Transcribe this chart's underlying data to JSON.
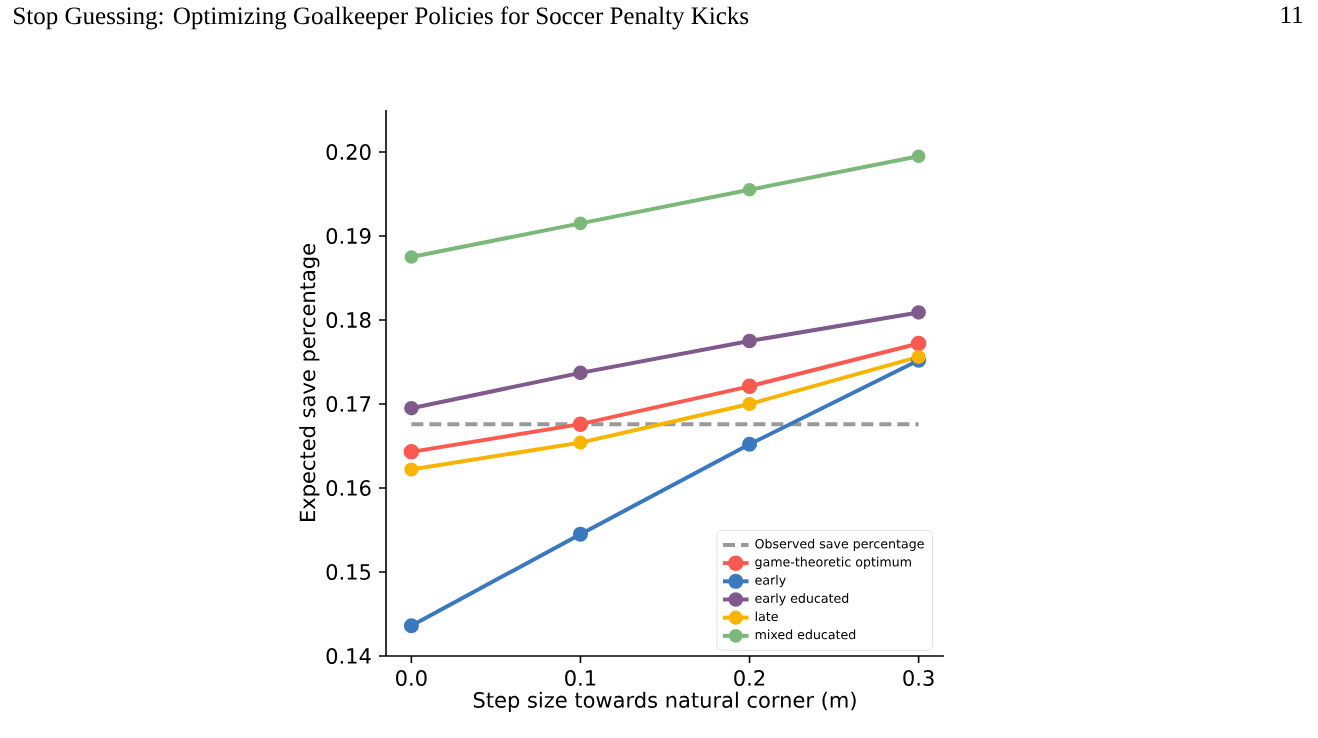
{
  "chart_data": {
    "type": "line",
    "title": "Stop Guessing: Optimizing Goalkeeper Policies for Soccer Penalty Kicks",
    "annotations": [
      "11"
    ],
    "xlabel": "Step size towards natural corner (m)",
    "ylabel": "Expected save percentage",
    "x": [
      0.0,
      0.1,
      0.2,
      0.3
    ],
    "xlim": [
      -0.015,
      0.315
    ],
    "xticks": [
      {
        "value": 0.0,
        "label": "0.0"
      },
      0.1,
      0.2,
      0.3
    ],
    "ylim": [
      0.14,
      0.205
    ],
    "yticks": [
      0.14,
      0.15,
      0.16,
      0.17,
      0.18,
      0.19,
      {
        "value": 0.2,
        "label": "0.20"
      }
    ],
    "marker": "circle",
    "line_style": "solid",
    "grid": false,
    "legend": "bottom right",
    "series": [
      {
        "name": "Observed save percentage",
        "color": "#999999",
        "values": [
          0.1676,
          0.1676,
          0.1676,
          0.1676
        ],
        "marker": "none",
        "line_style": "dashed"
      },
      {
        "name": "game-theoretic optimum",
        "color": "#fb5a50",
        "values": [
          0.1643,
          0.1676,
          0.1721,
          0.1772
        ]
      },
      {
        "name": "early",
        "color": "#3a78c0",
        "values": [
          0.1436,
          0.1545,
          0.1652,
          0.1752
        ]
      },
      {
        "name": "early educated",
        "color": "#7f5a8a",
        "values": [
          0.1695,
          0.1737,
          0.1775,
          0.1809
        ]
      },
      {
        "name": "late",
        "color": "#f8b400",
        "values": [
          0.1622,
          0.1654,
          0.17,
          0.1756
        ]
      },
      {
        "name": "mixed educated",
        "color": "#7cb87a",
        "values": [
          0.1875,
          0.1915,
          0.1955,
          0.1995
        ]
      }
    ]
  }
}
